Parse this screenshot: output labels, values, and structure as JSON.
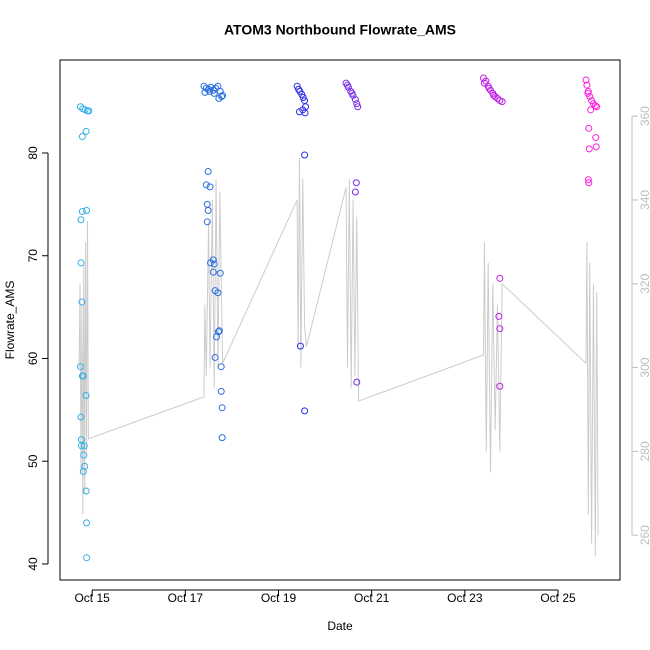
{
  "chart_data": {
    "type": "scatter",
    "title": "ATOM3 Northbound Flowrate_AMS",
    "x_label": "Date",
    "y_label": "Flowrate_AMS",
    "xlim": [
      14.31,
      26.33
    ],
    "ylim": [
      38.44,
      89.05
    ],
    "y2lim": [
      249.3,
      373.4
    ],
    "xticks": [
      {
        "value": 15,
        "label": "Oct 15"
      },
      {
        "value": 17,
        "label": "Oct 17"
      },
      {
        "value": 19,
        "label": "Oct 19"
      },
      {
        "value": 21,
        "label": "Oct 21"
      },
      {
        "value": 23,
        "label": "Oct 23"
      },
      {
        "value": 25,
        "label": "Oct 25"
      }
    ],
    "yticks": [
      40,
      50,
      60,
      70,
      80
    ],
    "y2ticks": [
      260,
      280,
      300,
      320,
      340,
      360
    ],
    "y2_color": "#bdbdbd",
    "series": [
      {
        "type": "line",
        "axis": "y2",
        "color": "#cccccc",
        "x": [
          14.72,
          14.74,
          14.76,
          14.78,
          14.8,
          14.82,
          14.84,
          14.86,
          14.88,
          14.9,
          14.92,
          17.4,
          17.42,
          17.45,
          17.5,
          17.53,
          17.58,
          17.62,
          17.66,
          17.7,
          17.74,
          17.8,
          19.4,
          19.42,
          19.45,
          19.48,
          19.52,
          19.56,
          19.6,
          20.45,
          20.48,
          20.52,
          20.56,
          20.6,
          20.64,
          20.68,
          20.72,
          23.4,
          23.42,
          23.46,
          23.5,
          23.55,
          23.6,
          23.65,
          23.7,
          23.75,
          23.8,
          25.6,
          25.62,
          25.65,
          25.68,
          25.72,
          25.76,
          25.8,
          25.83,
          25.86
        ],
        "values": [
          300,
          320,
          275,
          315,
          265,
          325,
          270,
          330,
          280,
          335,
          283,
          293,
          315,
          298,
          335,
          300,
          340,
          295,
          345,
          300,
          342,
          301,
          340,
          305,
          350,
          300,
          345,
          310,
          305,
          343,
          300,
          345,
          295,
          340,
          298,
          336,
          292,
          303,
          330,
          280,
          325,
          275,
          320,
          285,
          315,
          280,
          320,
          301,
          330,
          265,
          325,
          258,
          320,
          255,
          318,
          260
        ]
      },
      {
        "type": "scatter",
        "color": "#35b0e8",
        "x": [
          14.75,
          14.8,
          14.85,
          14.9,
          14.93,
          14.79,
          14.87,
          14.79,
          14.88,
          14.76,
          14.76,
          14.78,
          14.75,
          14.79,
          14.81,
          14.76,
          14.77,
          14.77,
          14.83,
          14.82,
          14.84,
          14.81,
          14.87,
          14.87,
          14.88,
          14.88
        ],
        "values": [
          84.5,
          84.3,
          84.2,
          84.1,
          84.1,
          81.6,
          82.1,
          74.3,
          74.4,
          73.5,
          69.3,
          65.5,
          59.2,
          58.3,
          58.3,
          54.3,
          52.1,
          51.5,
          51.5,
          50.6,
          49.5,
          49.0,
          56.4,
          47.1,
          44.0,
          40.6
        ]
      },
      {
        "type": "scatter",
        "color": "#2a6fe0",
        "x": [
          17.4,
          17.45,
          17.5,
          17.55,
          17.6,
          17.65,
          17.7,
          17.75,
          17.8,
          17.42,
          17.52,
          17.62,
          17.72,
          17.78,
          17.49,
          17.45,
          17.53,
          17.47,
          17.49,
          17.47,
          17.54,
          17.6,
          17.62,
          17.6,
          17.75,
          17.64,
          17.7,
          17.73,
          17.71,
          17.67,
          17.64,
          17.77,
          17.77,
          17.79,
          17.79
        ],
        "values": [
          86.5,
          86.3,
          86.2,
          86.4,
          86.1,
          86.3,
          86.5,
          86.0,
          85.6,
          85.9,
          86.0,
          85.8,
          85.3,
          85.5,
          78.2,
          76.9,
          76.7,
          75.0,
          74.4,
          73.3,
          69.3,
          69.6,
          69.2,
          68.4,
          68.3,
          66.6,
          66.4,
          62.7,
          62.6,
          62.1,
          60.1,
          59.2,
          56.8,
          55.2,
          52.3
        ]
      },
      {
        "type": "scatter",
        "color": "#2a2ee8",
        "x": [
          19.4,
          19.43,
          19.46,
          19.5,
          19.53,
          19.56,
          19.58,
          19.45,
          19.52,
          19.57,
          19.56,
          19.47,
          19.56
        ],
        "values": [
          86.5,
          86.2,
          86.0,
          85.7,
          85.4,
          85.1,
          84.5,
          84.0,
          84.2,
          83.9,
          79.8,
          61.2,
          54.9
        ]
      },
      {
        "type": "scatter",
        "color": "#7b2ee8",
        "x": [
          20.45,
          20.5,
          20.55,
          20.6,
          20.65,
          20.7,
          20.48,
          20.58,
          20.68,
          20.67,
          20.65,
          20.68
        ],
        "values": [
          86.8,
          86.4,
          86.0,
          85.6,
          85.2,
          84.5,
          86.6,
          85.8,
          84.8,
          77.1,
          76.2,
          57.7
        ]
      },
      {
        "type": "scatter",
        "color": "#c020e8",
        "x": [
          23.4,
          23.45,
          23.5,
          23.55,
          23.6,
          23.65,
          23.7,
          23.75,
          23.8,
          23.42,
          23.52,
          23.62,
          23.75,
          23.73,
          23.75,
          23.75
        ],
        "values": [
          87.3,
          87.0,
          86.5,
          86.1,
          85.8,
          85.5,
          85.3,
          85.1,
          85.0,
          86.8,
          86.3,
          85.6,
          67.8,
          64.1,
          62.9,
          57.3
        ]
      },
      {
        "type": "scatter",
        "color": "#ff20e0",
        "x": [
          25.6,
          25.62,
          25.65,
          25.68,
          25.72,
          25.76,
          25.8,
          25.83,
          25.64,
          25.7,
          25.66,
          25.81,
          25.67,
          25.82,
          25.65,
          25.66
        ],
        "values": [
          87.1,
          86.6,
          86.0,
          85.5,
          85.1,
          84.8,
          84.6,
          84.5,
          85.8,
          84.2,
          82.4,
          81.5,
          80.4,
          80.6,
          77.4,
          77.1
        ]
      }
    ]
  }
}
